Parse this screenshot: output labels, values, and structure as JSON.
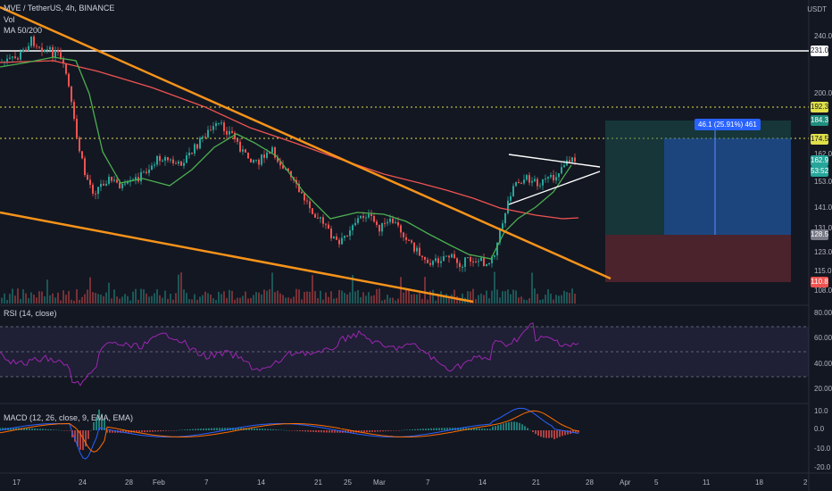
{
  "header": {
    "symbol": "MVE / TetherUS, 4h, BINANCE",
    "vol_label": "Vol",
    "ma_label": "MA 50/200",
    "rsi_label": "RSI (14, close)",
    "macd_label": "MACD (12, 26, close, 9, EMA, EMA)",
    "currency": "USDT"
  },
  "price_axis": {
    "ticks": [
      "240.0",
      "200.0",
      "162.0",
      "153.0",
      "141.0",
      "131.0",
      "123.0",
      "115.0",
      "108.0"
    ],
    "tags": {
      "t231": "231.0",
      "t192": "192.3",
      "t184": "184.3",
      "t174": "174.5",
      "t162": "162.9",
      "t159": "53:52",
      "t128": "128.5",
      "t110": "110.8"
    }
  },
  "rsi_axis": [
    "80.00",
    "60.00",
    "40.00",
    "20.00"
  ],
  "macd_axis": [
    "10.0",
    "0.0",
    "-10.0",
    "-20.0"
  ],
  "time_axis": [
    "17",
    "24",
    "28",
    "Feb",
    "7",
    "14",
    "21",
    "25",
    "Mar",
    "7",
    "14",
    "21",
    "28",
    "Apr",
    "5",
    "11",
    "18",
    "2"
  ],
  "position_label": "46.1 (25.91%) 461",
  "colors": {
    "background": "#131722",
    "trendline": "#f7931a",
    "ma50": "#4caf50",
    "ma200": "#ef5350",
    "rsi": "#9c27b0",
    "up": "#26a69a",
    "down": "#ef5350"
  }
}
